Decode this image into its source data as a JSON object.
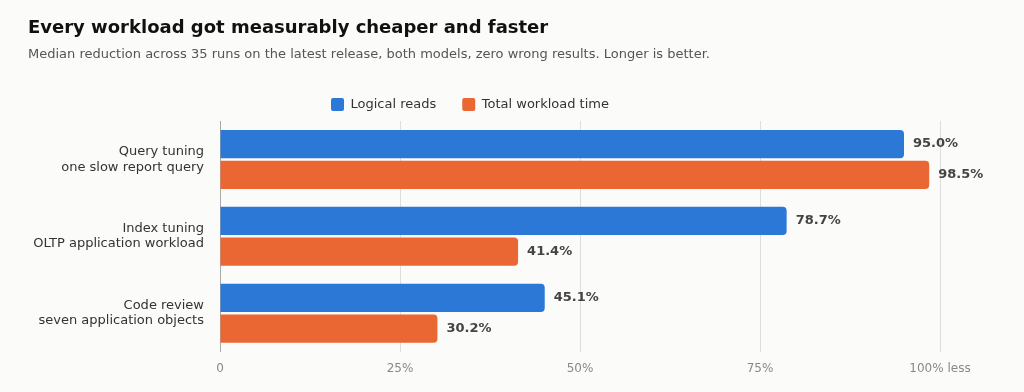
{
  "chart_data": {
    "type": "bar",
    "orientation": "horizontal",
    "title": "Every workload got measurably cheaper and faster",
    "subtitle": "Median reduction across 35 runs on the latest release, both models, zero wrong results. Longer is better.",
    "categories": [
      "Query tuning\none slow report query",
      "Index tuning\nOLTP application workload",
      "Code review\nseven application objects"
    ],
    "series": [
      {
        "name": "Logical reads",
        "color": "#2b78d6",
        "values": [
          95.0,
          78.7,
          45.1
        ],
        "value_labels": [
          "95.0%",
          "78.7%",
          "45.1%"
        ]
      },
      {
        "name": "Total workload time",
        "color": "#ea6734",
        "values": [
          98.5,
          41.4,
          30.2
        ],
        "value_labels": [
          "98.5%",
          "41.4%",
          "30.2%"
        ]
      }
    ],
    "xlim": [
      0,
      100
    ],
    "xticks": [
      0,
      {
        "value": 25,
        "label": "25%"
      },
      {
        "value": 50,
        "label": "50%"
      },
      {
        "value": 75,
        "label": "75%"
      },
      {
        "value": 100,
        "label": "100% less"
      }
    ],
    "grid": "x",
    "legend": "top"
  }
}
